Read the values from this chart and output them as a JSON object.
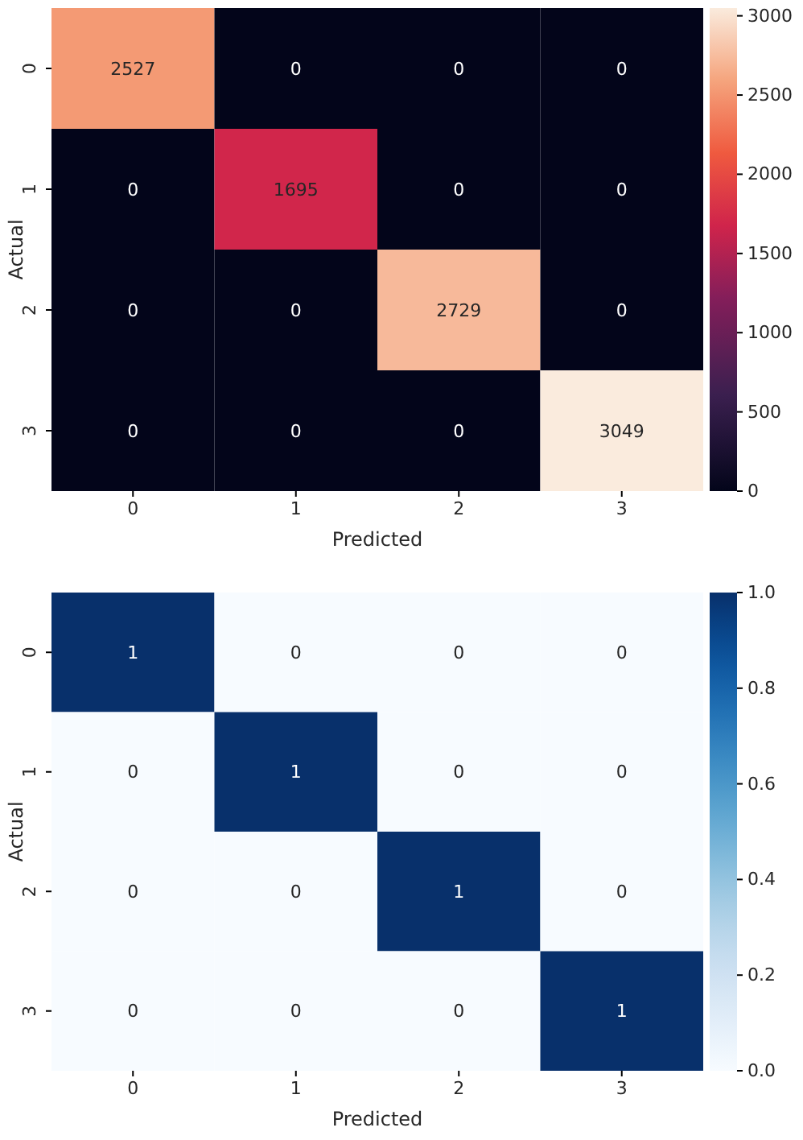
{
  "chart_data": [
    {
      "type": "heatmap",
      "xlabel": "Predicted",
      "ylabel": "Actual",
      "categories": [
        "0",
        "1",
        "2",
        "3"
      ],
      "y_categories": [
        "0",
        "1",
        "2",
        "3"
      ],
      "cells": [
        [
          2527,
          0,
          0,
          0
        ],
        [
          0,
          1695,
          0,
          0
        ],
        [
          0,
          0,
          2729,
          0
        ],
        [
          0,
          0,
          0,
          3049
        ]
      ],
      "data_labels": true,
      "clim": [
        0,
        3049
      ],
      "cticks": [
        0,
        500,
        1000,
        1500,
        2000,
        2500,
        3000
      ]
    },
    {
      "type": "heatmap",
      "xlabel": "Predicted",
      "ylabel": "Actual",
      "categories": [
        "0",
        "1",
        "2",
        "3"
      ],
      "y_categories": [
        "0",
        "1",
        "2",
        "3"
      ],
      "cells": [
        [
          1,
          0,
          0,
          0
        ],
        [
          0,
          1,
          0,
          0
        ],
        [
          0,
          0,
          1,
          0
        ],
        [
          0,
          0,
          0,
          1
        ]
      ],
      "data_labels": true,
      "clim": [
        0,
        1
      ],
      "cticks": [
        {
          "value": 0,
          "label": "0.0"
        },
        {
          "value": 0.2,
          "label": "0.2"
        },
        {
          "value": 0.4,
          "label": "0.4"
        },
        {
          "value": 0.6,
          "label": "0.6"
        },
        {
          "value": 0.8,
          "label": "0.8"
        },
        {
          "value": 1,
          "label": "1.0"
        }
      ]
    }
  ]
}
